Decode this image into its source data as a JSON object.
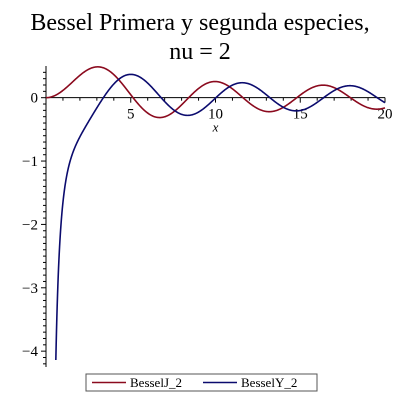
{
  "chart_data": {
    "type": "line",
    "title_lines": [
      "Bessel Primera y segunda especies,",
      "nu = 2"
    ],
    "xlabel": "x",
    "ylabel": "",
    "xlim": [
      0,
      20
    ],
    "ylim": [
      -4.25,
      0.5
    ],
    "x_ticks": [
      5,
      10,
      15,
      20
    ],
    "y_ticks": [
      0,
      -1,
      -2,
      -3,
      -4
    ],
    "legend_position": "bottom",
    "grid": false,
    "series": [
      {
        "name": "BesselJ_2",
        "color": "#8b0a1e",
        "function": "BesselJ(2,x)"
      },
      {
        "name": "BesselY_2",
        "color": "#0b0b6e",
        "function": "BesselY(2,x)"
      }
    ]
  }
}
